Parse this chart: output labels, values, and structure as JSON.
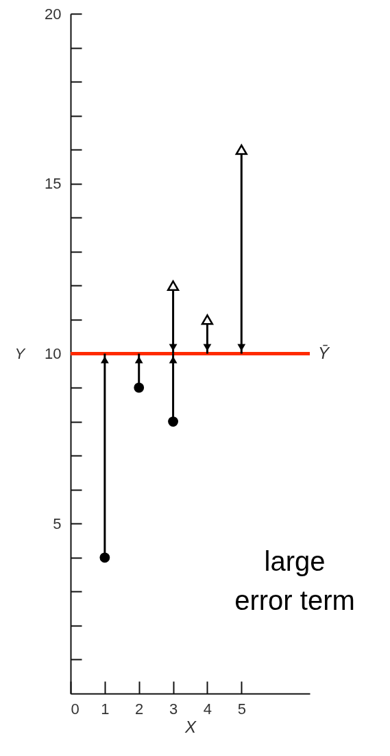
{
  "chart_data": {
    "type": "scatter",
    "xlabel": "X",
    "ylabel": "Y",
    "xlim": [
      0,
      7
    ],
    "ylim": [
      0,
      20
    ],
    "xticks": [
      0,
      1,
      2,
      3,
      4,
      5
    ],
    "yticks": [
      {
        "value": 1,
        "label": null
      },
      {
        "value": 2,
        "label": null
      },
      {
        "value": 3,
        "label": null
      },
      {
        "value": 4,
        "label": null
      },
      5,
      {
        "value": 6,
        "label": null
      },
      {
        "value": 7,
        "label": null
      },
      {
        "value": 8,
        "label": null
      },
      {
        "value": 9,
        "label": null
      },
      10,
      {
        "value": 11,
        "label": null
      },
      {
        "value": 12,
        "label": null
      },
      {
        "value": 13,
        "label": null
      },
      {
        "value": 14,
        "label": null
      },
      15,
      {
        "value": 16,
        "label": null
      },
      {
        "value": 17,
        "label": null
      },
      {
        "value": 18,
        "label": null
      },
      {
        "value": 19,
        "label": null
      },
      20
    ],
    "grid": false,
    "series": [
      {
        "color": "#000000",
        "marker": "circle",
        "x": [
          1,
          2,
          3
        ],
        "values": [
          4,
          9,
          8
        ],
        "errors": [
          [
            4,
            10
          ],
          [
            9,
            10
          ],
          [
            8,
            10
          ]
        ]
      },
      {
        "color": "#000000",
        "marker": "triangle",
        "x": [
          3,
          4,
          5
        ],
        "values": [
          12,
          11,
          16
        ],
        "errors": [
          [
            10,
            12
          ],
          [
            10,
            11
          ],
          [
            10,
            16
          ]
        ]
      }
    ],
    "ref_lines": [
      {
        "axis": "y",
        "value": 10,
        "label": "Ȳ",
        "color": "#ff2a00"
      }
    ],
    "annotations": [
      "large error term"
    ]
  }
}
